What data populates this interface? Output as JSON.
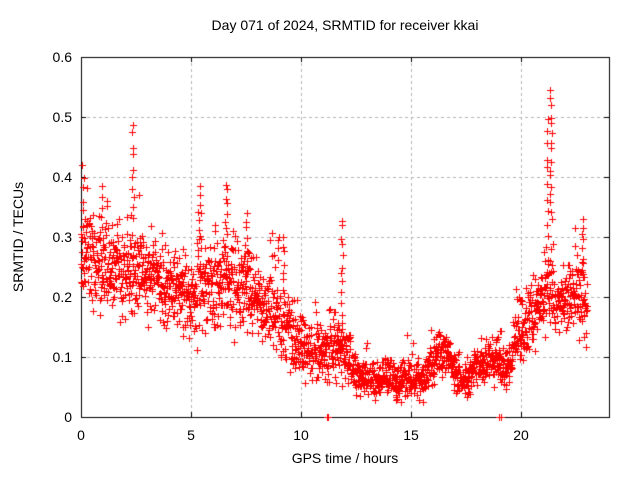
{
  "title": "Day 071 of 2024, SRMTID for receiver kkai",
  "chart_data": {
    "type": "scatter",
    "title": "Day 071 of 2024, SRMTID for receiver kkai",
    "xlabel": "GPS time / hours",
    "ylabel": "SRMTID / TECUs",
    "xlim": [
      0,
      24
    ],
    "ylim": [
      0,
      0.6
    ],
    "xticks": [
      "0",
      "5",
      "10",
      "15",
      "20"
    ],
    "xtick_values": [
      0,
      5,
      10,
      15,
      20
    ],
    "yticks": [
      "0",
      "0.1",
      "0.2",
      "0.3",
      "0.4",
      "0.5",
      "0.6"
    ],
    "ytick_values": [
      0,
      0.1,
      0.2,
      0.3,
      0.4,
      0.5,
      0.6
    ],
    "grid": true,
    "legend": "none",
    "marker": "plus",
    "marker_color": "#ff0000",
    "grid_color": "#b5b5b5",
    "border_color": "#000000",
    "text_color": "#000000",
    "background_color": "#ffffff",
    "series_name": "SRMTID for receiver kkai",
    "time_span_hours": [
      0.0,
      23.0
    ],
    "points_count": 2200,
    "seed": 71,
    "envelope": {
      "t": [
        0.0,
        0.3,
        0.7,
        1.0,
        1.5,
        2.0,
        2.5,
        3.0,
        3.5,
        4.0,
        4.5,
        5.0,
        5.5,
        6.0,
        6.5,
        7.0,
        7.5,
        8.0,
        8.5,
        9.0,
        9.5,
        10.0,
        10.5,
        11.0,
        11.5,
        12.0,
        12.5,
        13.0,
        13.5,
        14.0,
        14.5,
        15.0,
        15.5,
        16.0,
        16.3,
        16.7,
        17.0,
        17.5,
        18.0,
        18.5,
        19.0,
        19.3,
        19.7,
        20.0,
        20.5,
        21.0,
        21.3,
        21.7,
        22.0,
        22.4,
        22.7,
        23.0
      ],
      "mid": [
        0.26,
        0.27,
        0.24,
        0.25,
        0.26,
        0.24,
        0.26,
        0.24,
        0.23,
        0.22,
        0.21,
        0.2,
        0.22,
        0.21,
        0.23,
        0.22,
        0.21,
        0.19,
        0.18,
        0.17,
        0.14,
        0.11,
        0.11,
        0.12,
        0.12,
        0.1,
        0.07,
        0.065,
        0.06,
        0.07,
        0.06,
        0.065,
        0.06,
        0.09,
        0.115,
        0.1,
        0.07,
        0.06,
        0.085,
        0.095,
        0.09,
        0.08,
        0.12,
        0.14,
        0.17,
        0.19,
        0.22,
        0.19,
        0.2,
        0.21,
        0.2,
        0.19
      ],
      "lo": [
        0.16,
        0.18,
        0.16,
        0.16,
        0.17,
        0.16,
        0.17,
        0.15,
        0.14,
        0.13,
        0.12,
        0.1,
        0.13,
        0.13,
        0.14,
        0.13,
        0.12,
        0.11,
        0.1,
        0.09,
        0.06,
        0.05,
        0.04,
        0.05,
        0.05,
        0.04,
        0.03,
        0.03,
        0.025,
        0.03,
        0.02,
        0.03,
        0.02,
        0.05,
        0.07,
        0.05,
        0.03,
        0.025,
        0.04,
        0.05,
        0.04,
        0.03,
        0.06,
        0.08,
        0.1,
        0.11,
        0.13,
        0.11,
        0.13,
        0.14,
        0.11,
        0.1
      ],
      "hi": [
        0.36,
        0.4,
        0.34,
        0.38,
        0.36,
        0.33,
        0.35,
        0.32,
        0.31,
        0.3,
        0.29,
        0.28,
        0.33,
        0.3,
        0.33,
        0.32,
        0.31,
        0.28,
        0.28,
        0.27,
        0.22,
        0.18,
        0.2,
        0.22,
        0.2,
        0.18,
        0.12,
        0.11,
        0.1,
        0.12,
        0.1,
        0.11,
        0.1,
        0.13,
        0.16,
        0.15,
        0.12,
        0.1,
        0.13,
        0.15,
        0.15,
        0.14,
        0.18,
        0.21,
        0.25,
        0.28,
        0.35,
        0.28,
        0.27,
        0.28,
        0.3,
        0.28
      ]
    },
    "spike_columns": [
      {
        "t": 0.07,
        "base": 0.3,
        "top": 0.42,
        "n": 7
      },
      {
        "t": 0.95,
        "base": 0.28,
        "top": 0.385,
        "n": 6
      },
      {
        "t": 2.35,
        "base": 0.33,
        "top": 0.487,
        "n": 10
      },
      {
        "t": 5.4,
        "base": 0.3,
        "top": 0.385,
        "n": 7
      },
      {
        "t": 6.6,
        "base": 0.3,
        "top": 0.392,
        "n": 8
      },
      {
        "t": 7.52,
        "base": 0.28,
        "top": 0.34,
        "n": 6
      },
      {
        "t": 9.2,
        "base": 0.24,
        "top": 0.3,
        "n": 5
      },
      {
        "t": 11.85,
        "base": 0.16,
        "top": 0.332,
        "n": 12
      },
      {
        "t": 21.2,
        "base": 0.3,
        "top": 0.5,
        "n": 10
      },
      {
        "t": 21.35,
        "base": 0.33,
        "top": 0.545,
        "n": 16
      },
      {
        "t": 22.8,
        "base": 0.24,
        "top": 0.33,
        "n": 8
      }
    ],
    "zero_value_points_hours": [
      11.16,
      11.21,
      19.02,
      19.08
    ]
  }
}
